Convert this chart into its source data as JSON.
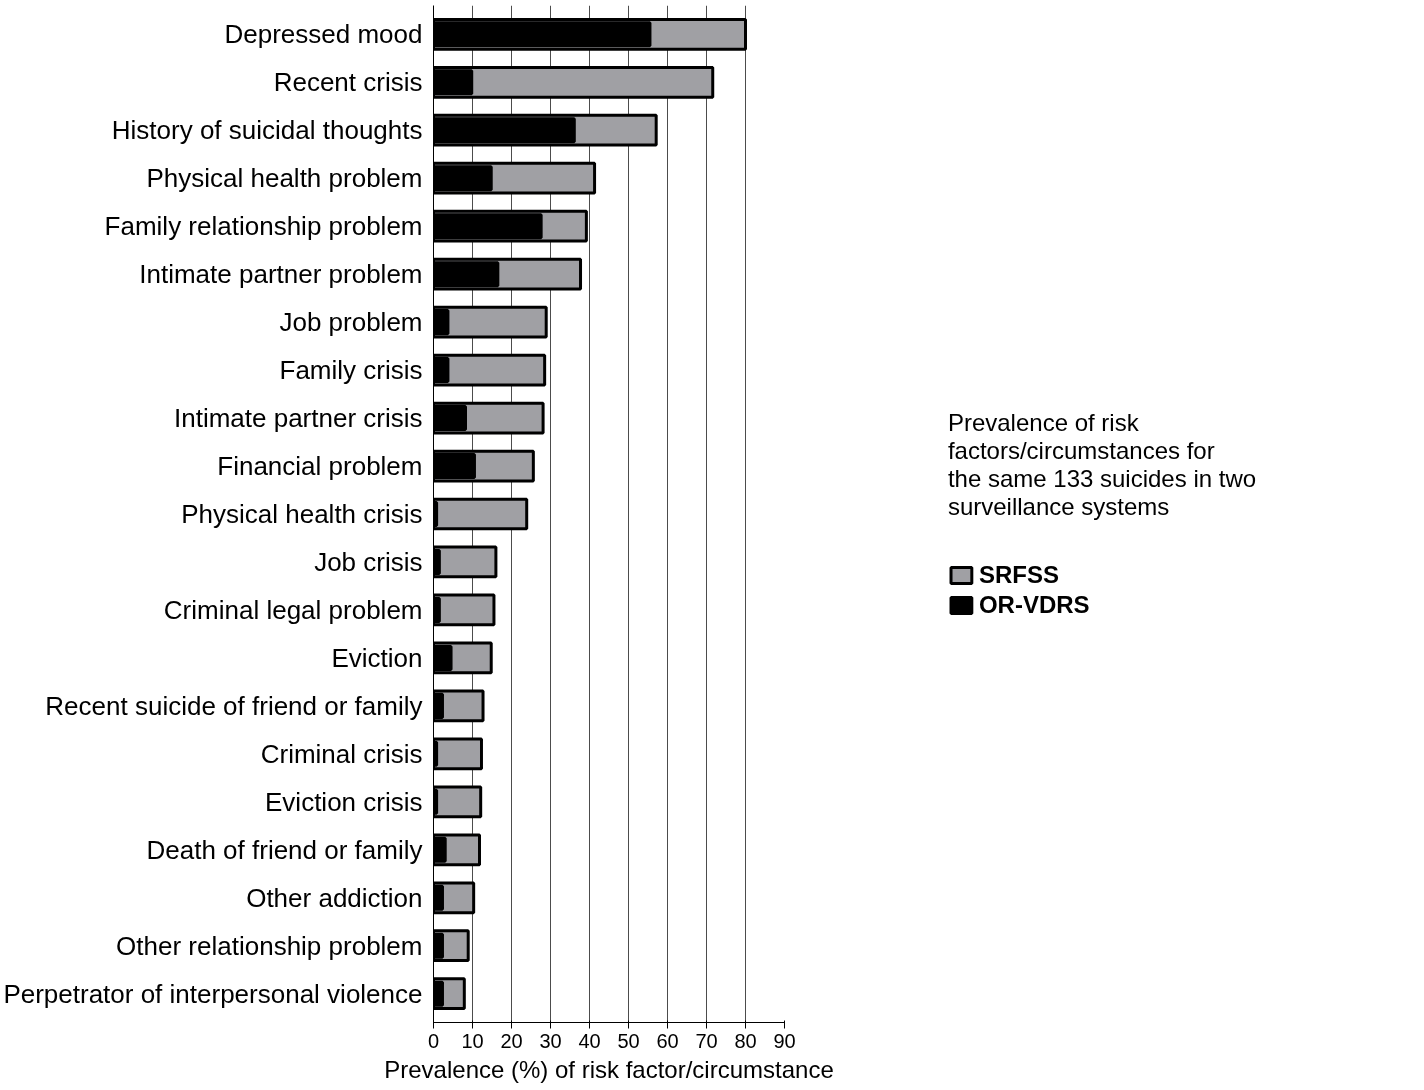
{
  "chart_data": {
    "type": "bar",
    "orientation": "horizontal",
    "xlabel": "Prevalence (%) of risk factor/circumstance",
    "legend_title": "Prevalence of risk factors/circumstances for the same 133 suicides in two surveillance systems",
    "categories": [
      "Depressed mood",
      "Recent crisis",
      "History of suicidal thoughts",
      "Physical health problem",
      "Family relationship problem",
      "Intimate partner problem",
      "Job problem",
      "Family crisis",
      "Intimate partner crisis",
      "Financial problem",
      "Physical health crisis",
      "Job crisis",
      "Criminal legal problem",
      "Eviction",
      "Recent suicide of friend or family",
      "Criminal crisis",
      "Eviction crisis",
      "Death of friend or family",
      "Other addiction",
      "Other relationship problem",
      "Perpetrator of interpersonal violence"
    ],
    "series": [
      {
        "name": "SRFSS",
        "color": "#a0a0a4",
        "values": [
          80,
          71.6,
          57.1,
          41.3,
          39.2,
          37.7,
          28.9,
          28.5,
          28.1,
          25.6,
          23.9,
          16,
          15.5,
          14.8,
          12.7,
          12.3,
          12.1,
          11.8,
          10.3,
          8.9,
          7.9
        ]
      },
      {
        "name": "OR-VDRS",
        "color": "#000000",
        "values": [
          55.5,
          9.8,
          36.1,
          14.8,
          27.6,
          16.5,
          3.7,
          3.7,
          8.2,
          10.5,
          0.8,
          1.5,
          1.5,
          4.5,
          2.3,
          0.8,
          0.8,
          3,
          2.3,
          2.3,
          2.3
        ]
      }
    ],
    "xlim": [
      0,
      90
    ],
    "xticks": [
      0,
      10,
      20,
      30,
      40,
      50,
      60,
      70,
      80,
      90
    ],
    "grid": "x",
    "legend": "right"
  }
}
